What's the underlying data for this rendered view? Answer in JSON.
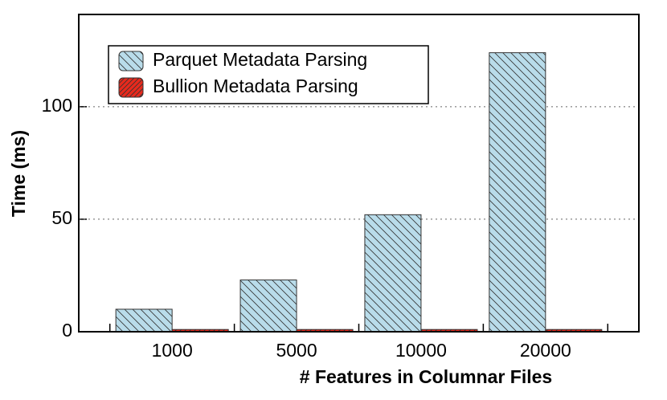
{
  "chart_data": {
    "type": "bar",
    "xlabel": "# Features in Columnar Files",
    "ylabel": "Time (ms)",
    "categories": [
      "1000",
      "5000",
      "10000",
      "20000"
    ],
    "series": [
      {
        "name": "Parquet Metadata Parsing",
        "color": "#b9dcea",
        "values": [
          10,
          23,
          52,
          124
        ]
      },
      {
        "name": "Bullion Metadata Parsing",
        "color": "#e8291c",
        "values": [
          1,
          1,
          1,
          1
        ]
      }
    ],
    "ylim": [
      0,
      141
    ],
    "yticks": [
      0,
      50,
      100
    ],
    "grid": true,
    "legend": "upper left"
  }
}
